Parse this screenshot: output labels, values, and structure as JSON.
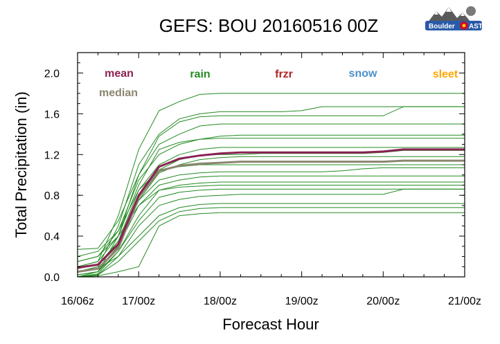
{
  "chart_data": {
    "type": "line",
    "title": "GEFS: BOU 20160516 00Z",
    "xlabel": "Forecast Hour",
    "ylabel": "Total Precipitation (in)",
    "x_ticks": [
      "16/06z",
      "17/00z",
      "18/00z",
      "19/00z",
      "20/00z",
      "21/00z"
    ],
    "x_tick_hours": [
      6,
      24,
      48,
      72,
      96,
      120
    ],
    "xlim": [
      6,
      120
    ],
    "ylim": [
      0,
      2.2
    ],
    "y_ticks": [
      "0.0",
      "0.4",
      "0.8",
      "1.2",
      "1.6",
      "2.0"
    ],
    "y_tick_values": [
      0.0,
      0.4,
      0.8,
      1.2,
      1.6,
      2.0
    ],
    "grid": false,
    "legend": [
      {
        "label": "mean",
        "color": "#8b2252"
      },
      {
        "label": "median",
        "color": "#8b8570"
      },
      {
        "label": "rain",
        "color": "#228b22"
      },
      {
        "label": "frzr",
        "color": "#b22222"
      },
      {
        "label": "snow",
        "color": "#4a90c8"
      },
      {
        "label": "sleet",
        "color": "#ffa500"
      }
    ],
    "x": [
      6,
      12,
      18,
      24,
      30,
      36,
      42,
      48,
      54,
      60,
      66,
      72,
      78,
      84,
      90,
      96,
      102,
      108,
      114,
      120
    ],
    "members_color": "#228b22",
    "members": [
      {
        "values": [
          0.1,
          0.15,
          0.6,
          1.25,
          1.63,
          1.72,
          1.79,
          1.8,
          1.8,
          1.8,
          1.8,
          1.8,
          1.8,
          1.8,
          1.8,
          1.8,
          1.8,
          1.8,
          1.8,
          1.8
        ]
      },
      {
        "values": [
          0.05,
          0.1,
          0.5,
          1.1,
          1.4,
          1.55,
          1.6,
          1.62,
          1.62,
          1.62,
          1.62,
          1.63,
          1.67,
          1.67,
          1.67,
          1.67,
          1.67,
          1.67,
          1.67,
          1.67
        ]
      },
      {
        "values": [
          0.02,
          0.05,
          0.4,
          1.0,
          1.38,
          1.52,
          1.57,
          1.58,
          1.58,
          1.58,
          1.58,
          1.58,
          1.58,
          1.58,
          1.58,
          1.58,
          1.67,
          1.67,
          1.67,
          1.67
        ]
      },
      {
        "values": [
          0.27,
          0.28,
          0.55,
          1.0,
          1.3,
          1.4,
          1.48,
          1.5,
          1.5,
          1.5,
          1.5,
          1.5,
          1.5,
          1.5,
          1.5,
          1.5,
          1.5,
          1.5,
          1.5,
          1.5
        ]
      },
      {
        "values": [
          0.15,
          0.2,
          0.45,
          0.95,
          1.2,
          1.3,
          1.35,
          1.38,
          1.39,
          1.39,
          1.39,
          1.39,
          1.39,
          1.39,
          1.39,
          1.39,
          1.39,
          1.39,
          1.39,
          1.39
        ]
      },
      {
        "values": [
          0.1,
          0.15,
          0.4,
          0.9,
          1.25,
          1.32,
          1.35,
          1.36,
          1.36,
          1.36,
          1.36,
          1.36,
          1.36,
          1.36,
          1.36,
          1.36,
          1.36,
          1.36,
          1.36,
          1.36
        ]
      },
      {
        "values": [
          0.08,
          0.12,
          0.35,
          0.85,
          1.1,
          1.2,
          1.25,
          1.27,
          1.27,
          1.27,
          1.27,
          1.27,
          1.27,
          1.27,
          1.27,
          1.27,
          1.27,
          1.27,
          1.27,
          1.27
        ]
      },
      {
        "values": [
          0.05,
          0.08,
          0.3,
          0.8,
          1.05,
          1.15,
          1.19,
          1.2,
          1.2,
          1.21,
          1.21,
          1.21,
          1.21,
          1.21,
          1.21,
          1.22,
          1.24,
          1.24,
          1.24,
          1.24
        ]
      },
      {
        "values": [
          0.0,
          0.05,
          0.3,
          0.75,
          1.02,
          1.1,
          1.15,
          1.17,
          1.18,
          1.18,
          1.18,
          1.18,
          1.18,
          1.18,
          1.18,
          1.18,
          1.18,
          1.18,
          1.18,
          1.18
        ]
      },
      {
        "values": [
          0.2,
          0.25,
          0.45,
          0.85,
          1.05,
          1.08,
          1.1,
          1.1,
          1.1,
          1.1,
          1.1,
          1.1,
          1.1,
          1.1,
          1.1,
          1.1,
          1.1,
          1.1,
          1.1,
          1.1
        ]
      },
      {
        "values": [
          0.05,
          0.1,
          0.35,
          0.75,
          0.95,
          1.0,
          1.02,
          1.03,
          1.03,
          1.03,
          1.03,
          1.03,
          1.03,
          1.04,
          1.06,
          1.07,
          1.07,
          1.07,
          1.07,
          1.07
        ]
      },
      {
        "values": [
          0.02,
          0.05,
          0.3,
          0.7,
          0.9,
          0.95,
          0.98,
          0.99,
          0.99,
          0.99,
          0.99,
          0.99,
          0.99,
          0.99,
          0.99,
          0.99,
          0.99,
          0.99,
          0.99,
          0.99
        ]
      },
      {
        "values": [
          0.0,
          0.03,
          0.25,
          0.6,
          0.85,
          0.9,
          0.92,
          0.93,
          0.93,
          0.93,
          0.93,
          0.93,
          0.93,
          0.93,
          0.93,
          0.93,
          0.93,
          0.93,
          0.93,
          0.93
        ]
      },
      {
        "values": [
          0.15,
          0.2,
          0.4,
          0.7,
          0.85,
          0.88,
          0.89,
          0.9,
          0.9,
          0.9,
          0.9,
          0.9,
          0.9,
          0.9,
          0.9,
          0.9,
          0.9,
          0.9,
          0.9,
          0.9
        ]
      },
      {
        "values": [
          0.02,
          0.05,
          0.25,
          0.55,
          0.78,
          0.83,
          0.85,
          0.86,
          0.86,
          0.86,
          0.86,
          0.86,
          0.86,
          0.86,
          0.86,
          0.86,
          0.86,
          0.86,
          0.86,
          0.86
        ]
      },
      {
        "values": [
          0.0,
          0.02,
          0.2,
          0.5,
          0.7,
          0.76,
          0.79,
          0.8,
          0.81,
          0.81,
          0.81,
          0.81,
          0.81,
          0.81,
          0.81,
          0.81,
          0.86,
          0.86,
          0.86,
          0.86
        ]
      },
      {
        "values": [
          0.05,
          0.08,
          0.2,
          0.4,
          0.6,
          0.68,
          0.71,
          0.72,
          0.72,
          0.72,
          0.72,
          0.72,
          0.72,
          0.72,
          0.72,
          0.72,
          0.72,
          0.72,
          0.72,
          0.72
        ]
      },
      {
        "values": [
          0.0,
          0.02,
          0.15,
          0.35,
          0.55,
          0.64,
          0.67,
          0.68,
          0.68,
          0.68,
          0.68,
          0.68,
          0.68,
          0.68,
          0.68,
          0.68,
          0.68,
          0.68,
          0.68,
          0.68
        ]
      },
      {
        "values": [
          0.0,
          0.01,
          0.05,
          0.1,
          0.5,
          0.6,
          0.62,
          0.63,
          0.63,
          0.63,
          0.63,
          0.63,
          0.63,
          0.63,
          0.63,
          0.63,
          0.63,
          0.63,
          0.63,
          0.63
        ]
      }
    ],
    "series": [
      {
        "name": "mean",
        "color": "#8b2252",
        "values": [
          0.09,
          0.12,
          0.32,
          0.8,
          1.08,
          1.16,
          1.19,
          1.21,
          1.22,
          1.22,
          1.22,
          1.22,
          1.22,
          1.22,
          1.22,
          1.23,
          1.25,
          1.25,
          1.25,
          1.25
        ]
      },
      {
        "name": "median",
        "color": "#8b8570",
        "values": [
          0.05,
          0.08,
          0.28,
          0.78,
          1.04,
          1.09,
          1.11,
          1.12,
          1.13,
          1.13,
          1.13,
          1.13,
          1.13,
          1.13,
          1.13,
          1.13,
          1.14,
          1.14,
          1.14,
          1.14
        ]
      }
    ]
  }
}
